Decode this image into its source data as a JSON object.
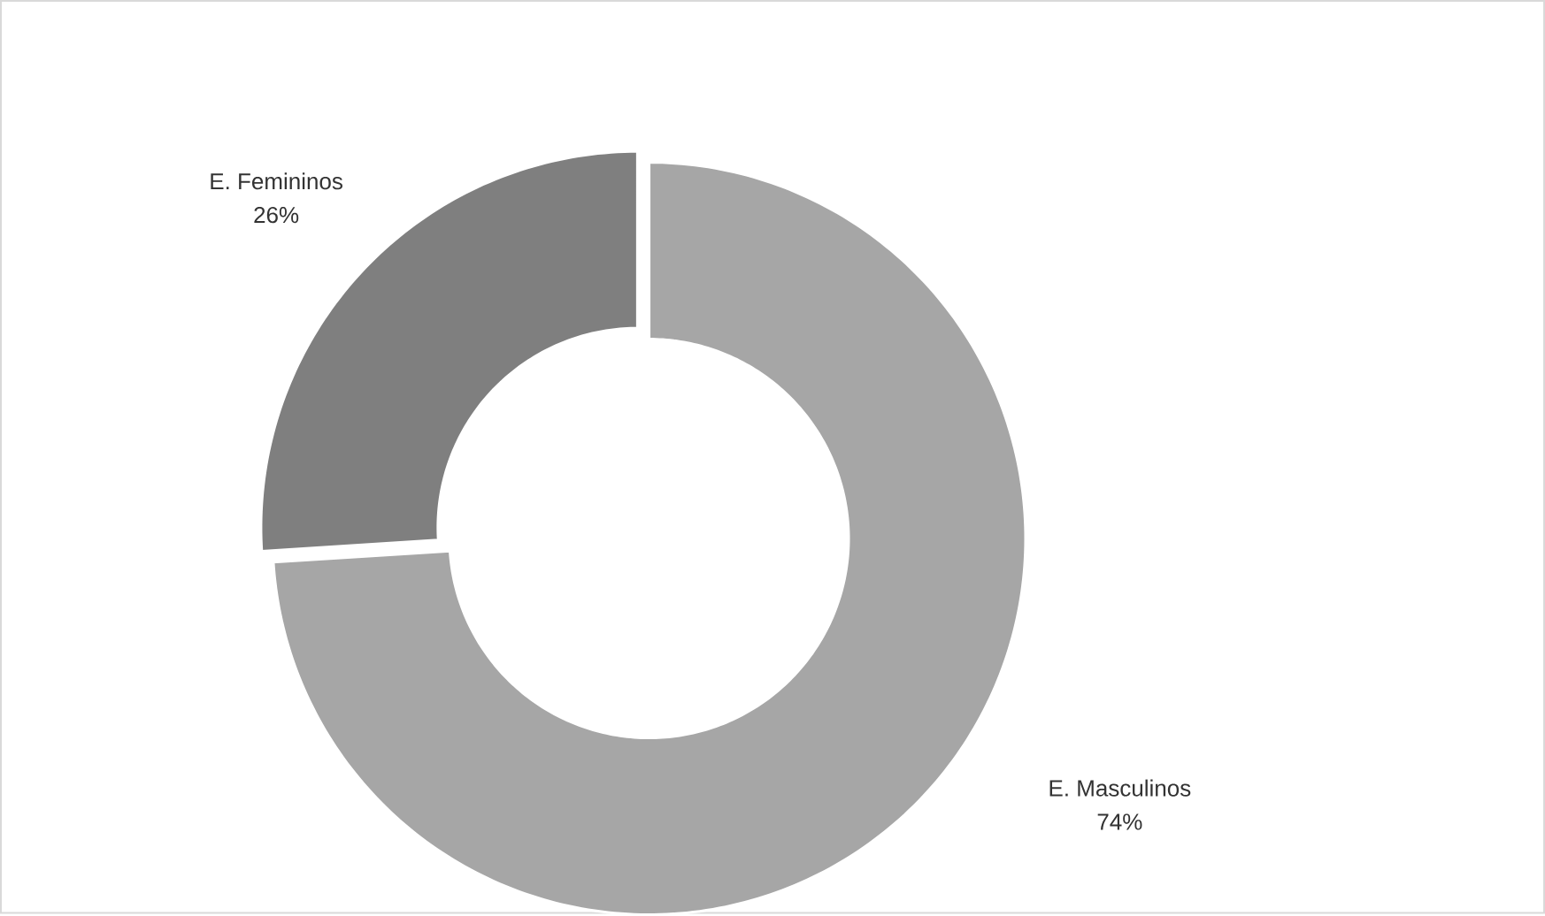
{
  "chart_data": {
    "type": "donut",
    "categories": [
      "E. Masculinos",
      "E. Femininos"
    ],
    "values": [
      74,
      26
    ],
    "value_labels": [
      "74%",
      "26%"
    ],
    "colors": [
      "#a6a6a6",
      "#7f7f7f"
    ]
  }
}
